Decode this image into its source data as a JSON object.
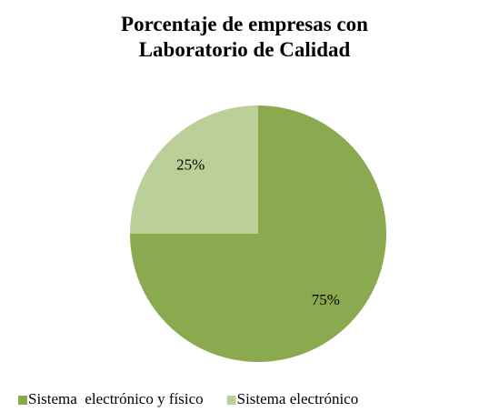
{
  "chart_data": {
    "type": "pie",
    "title": "Porcentaje de empresas con Laboratorio de Calidad",
    "categories": [
      "Sistema  electrónico y físico",
      "Sistema electrónico"
    ],
    "values": [
      75,
      25
    ],
    "value_labels": [
      "75%",
      "25%"
    ],
    "colors": [
      "#8ba94f",
      "#bbcf98"
    ],
    "legend": "bottom"
  }
}
